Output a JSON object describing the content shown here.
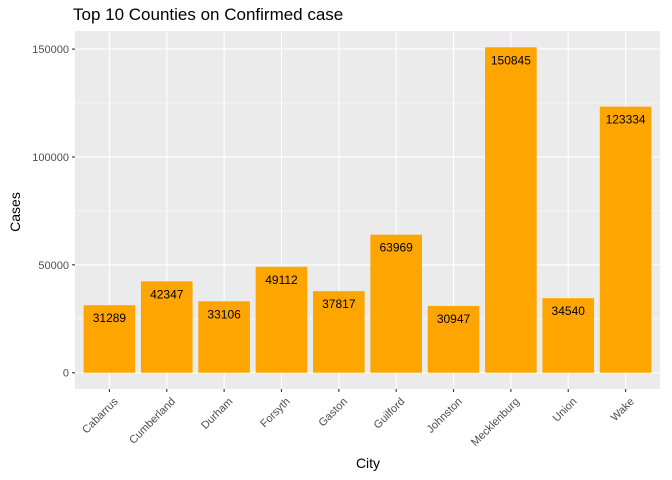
{
  "chart_data": {
    "type": "bar",
    "title": "Top 10 Counties on Confirmed case",
    "xlabel": "City",
    "ylabel": "Cases",
    "categories": [
      "Cabarrus",
      "Cumberland",
      "Durham",
      "Forsyth",
      "Gaston",
      "Guilford",
      "Johnston",
      "Mecklenburg",
      "Union",
      "Wake"
    ],
    "values": [
      31289,
      42347,
      33106,
      49112,
      37817,
      63969,
      30947,
      150845,
      34540,
      123334
    ],
    "ylim": [
      -7542,
      158387
    ],
    "yticks": [
      0,
      50000,
      100000,
      150000
    ],
    "ytick_labels": [
      "0",
      "50000",
      "100000",
      "150000"
    ],
    "grid": true,
    "bar_color": "#FFA500",
    "panel_background": "#EBEBEB",
    "grid_color": "#FFFFFF",
    "data_labels": true
  }
}
